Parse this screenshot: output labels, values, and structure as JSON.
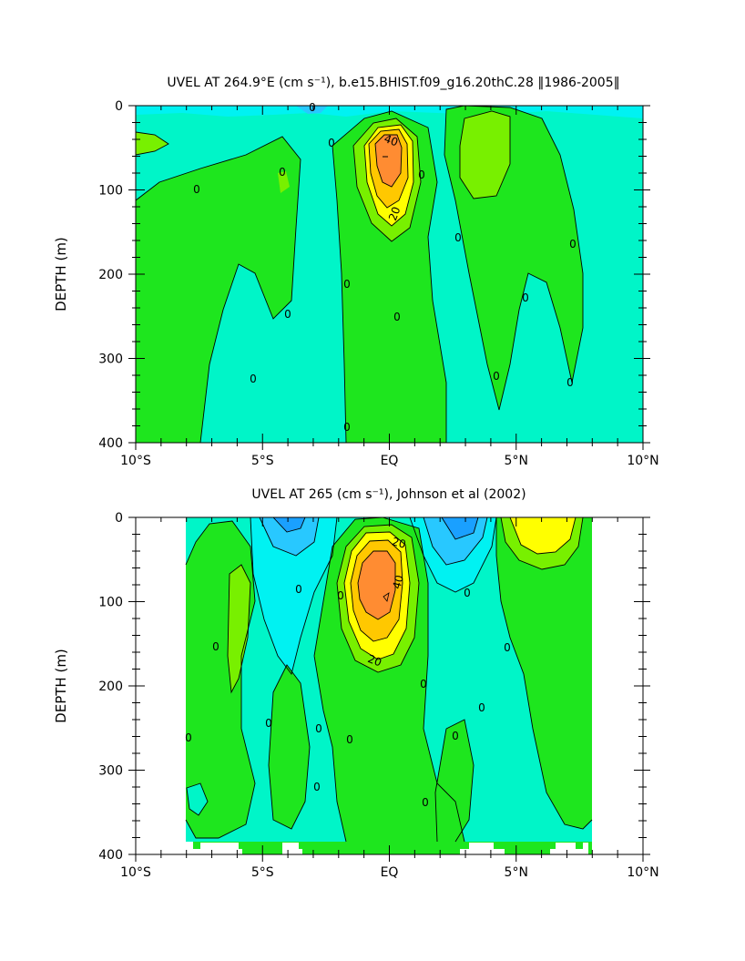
{
  "colors": {
    "neg3": "#1aa0ff",
    "neg2": "#28c8ff",
    "neg1": "#00f2f2",
    "zero": "#00f5c8",
    "pos1": "#1ee61e",
    "pos2": "#78f000",
    "pos3": "#ffff00",
    "pos4": "#ffc800",
    "pos5": "#ff8c32"
  },
  "chart_data": [
    {
      "type": "contour",
      "title": "UVEL AT 264.9°E (cm s⁻¹), b.e15.BHIST.f09_g16.20thC.28 ‖1986-2005‖",
      "xlabel": "",
      "ylabel": "DEPTH (m)",
      "xlim": [
        -10,
        10
      ],
      "ylim": [
        400,
        0
      ],
      "x_ticks": [
        "10°S",
        "5°S",
        "EQ",
        "5°N",
        "10°N"
      ],
      "y_ticks": [
        "0",
        "100",
        "200",
        "300",
        "400"
      ],
      "contour_labels": [
        "0",
        "0",
        "0",
        "0",
        "0",
        "0",
        "0",
        "0",
        "0",
        "0",
        "0",
        "0",
        "0",
        "0",
        "0",
        "20",
        "40"
      ],
      "core": {
        "lat": 0,
        "depth": 65,
        "max_speed": 60
      },
      "grid": false
    },
    {
      "type": "contour",
      "title": "UVEL AT 265 (cm s⁻¹), Johnson et al (2002)",
      "xlabel": "",
      "ylabel": "DEPTH (m)",
      "xlim": [
        -10,
        10
      ],
      "ylim": [
        400,
        0
      ],
      "x_ticks": [
        "10°S",
        "5°S",
        "EQ",
        "5°N",
        "10°N"
      ],
      "y_ticks": [
        "0",
        "100",
        "200",
        "300",
        "400"
      ],
      "contour_labels": [
        "0",
        "0",
        "0",
        "0",
        "0",
        "0",
        "0",
        "0",
        "0",
        "0",
        "0",
        "0",
        "0",
        "0",
        "20",
        "20",
        "40"
      ],
      "core": {
        "lat": 0,
        "depth": 65,
        "max_speed": 60
      },
      "grid": false
    }
  ]
}
